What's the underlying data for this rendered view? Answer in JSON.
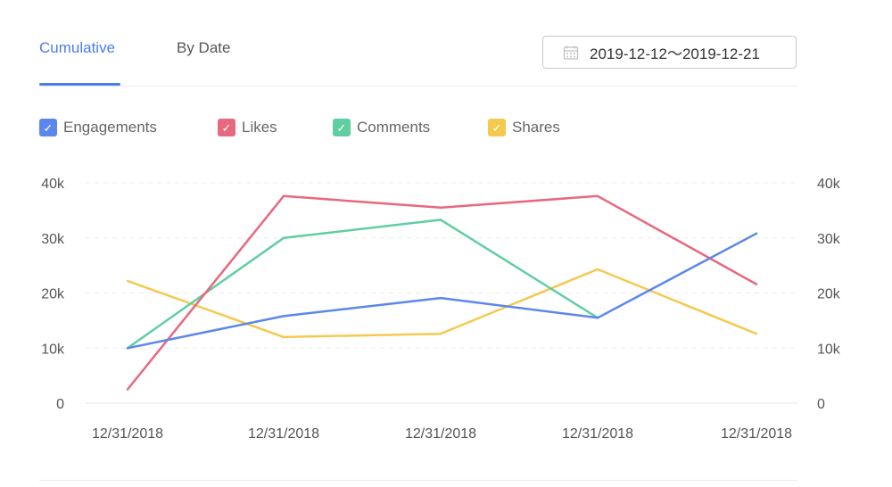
{
  "tabs": [
    {
      "label": "Cumulative",
      "active": true
    },
    {
      "label": "By Date",
      "active": false
    }
  ],
  "date_range": {
    "text": "2019-12-12～2019-12-21",
    "icon": "calendar-icon"
  },
  "chart_data": {
    "type": "line",
    "x": [
      "12/31/2018",
      "12/31/2018",
      "12/31/2018",
      "12/31/2018",
      "12/31/2018"
    ],
    "y_ticks_left": [
      "0",
      "10k",
      "20k",
      "30k",
      "40k"
    ],
    "y_ticks_right": [
      "0",
      "10k",
      "20k",
      "30k",
      "40k"
    ],
    "ylim": [
      0,
      40000
    ],
    "grid": "horizontal dashed",
    "legend_position": "top-left",
    "series": [
      {
        "name": "Engagements",
        "color": "#5b87ec",
        "checked": true,
        "values": [
          10000,
          15800,
          19100,
          15500,
          30800
        ]
      },
      {
        "name": "Likes",
        "color": "#e8687f",
        "checked": true,
        "values": [
          2500,
          37600,
          35500,
          37600,
          21600
        ]
      },
      {
        "name": "Comments",
        "color": "#5fcfa1",
        "checked": true,
        "values": [
          10000,
          30000,
          33300,
          15500,
          null
        ]
      },
      {
        "name": "Shares",
        "color": "#f5c94e",
        "checked": true,
        "values": [
          22200,
          12000,
          12600,
          24300,
          12600
        ]
      }
    ]
  }
}
